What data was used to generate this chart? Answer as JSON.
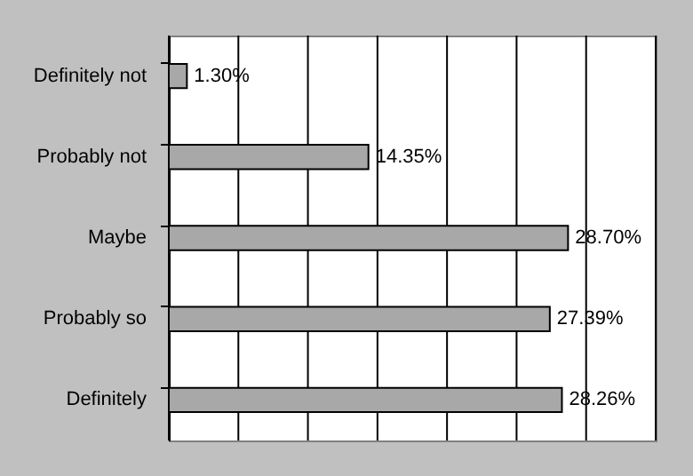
{
  "chart_data": {
    "type": "bar",
    "orientation": "horizontal",
    "categories": [
      "Definitely not",
      "Probably not",
      "Maybe",
      "Probably so",
      "Definitely"
    ],
    "values": [
      1.3,
      14.35,
      28.7,
      27.39,
      28.26
    ],
    "value_labels": [
      "1.30%",
      "14.35%",
      "28.70%",
      "27.39%",
      "28.26%"
    ],
    "color": "#a8a8a8",
    "xlim": [
      0,
      35
    ],
    "xticks": [
      {
        "value": 0,
        "label": null
      },
      {
        "value": 5,
        "label": null
      },
      {
        "value": 10,
        "label": null
      },
      {
        "value": 15,
        "label": null
      },
      {
        "value": 20,
        "label": null
      },
      {
        "value": 25,
        "label": null
      },
      {
        "value": 30,
        "label": null
      },
      {
        "value": 35,
        "label": null
      }
    ],
    "grid": "x",
    "tick_labels": "y"
  }
}
